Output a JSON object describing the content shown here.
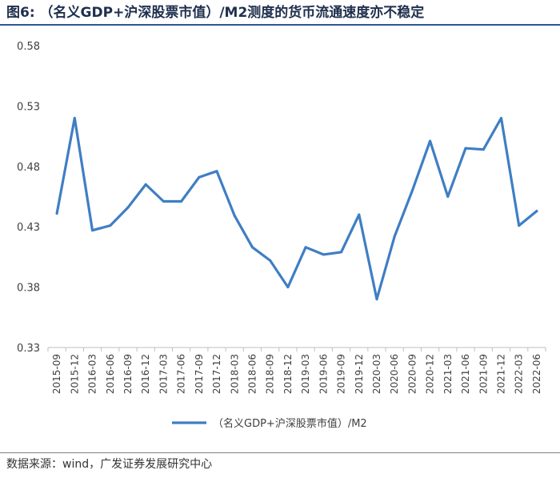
{
  "figure": {
    "title": "图6: （名义GDP+沪深股票市值）/M2测度的货币流通速度亦不稳定",
    "source": "数据来源：wind，广发证券发展研究中心"
  },
  "colors": {
    "line": "#3f7ec4",
    "axis": "#bfbfbf",
    "text": "#404040",
    "title": "#1f2f4d",
    "rule": "#2e5597"
  },
  "chart_data": {
    "type": "line",
    "title": "",
    "xlabel": "",
    "ylabel": "",
    "grid": false,
    "legend_position": "bottom",
    "ylim": [
      0.33,
      0.58
    ],
    "yticks": [
      0.58,
      0.53,
      0.48,
      0.43,
      0.38,
      0.33
    ],
    "ytick_labels": [
      "0.58",
      "0.53",
      "0.48",
      "0.43",
      "0.38",
      "0.33"
    ],
    "categories": [
      "2015-09",
      "2015-12",
      "2016-03",
      "2016-06",
      "2016-09",
      "2016-12",
      "2017-03",
      "2017-06",
      "2017-09",
      "2017-12",
      "2018-03",
      "2018-06",
      "2018-09",
      "2018-12",
      "2019-03",
      "2019-06",
      "2019-09",
      "2019-12",
      "2020-03",
      "2020-06",
      "2020-09",
      "2020-12",
      "2021-03",
      "2021-06",
      "2021-09",
      "2021-12",
      "2022-03",
      "2022-06"
    ],
    "series": [
      {
        "name": "（名义GDP+沪深股票市值）/M2",
        "values": [
          0.441,
          0.52,
          0.427,
          0.431,
          0.446,
          0.465,
          0.451,
          0.451,
          0.471,
          0.476,
          0.439,
          0.413,
          0.402,
          0.38,
          0.413,
          0.407,
          0.409,
          0.44,
          0.37,
          0.422,
          0.46,
          0.501,
          0.455,
          0.495,
          0.494,
          0.52,
          0.431,
          0.443
        ]
      }
    ]
  }
}
